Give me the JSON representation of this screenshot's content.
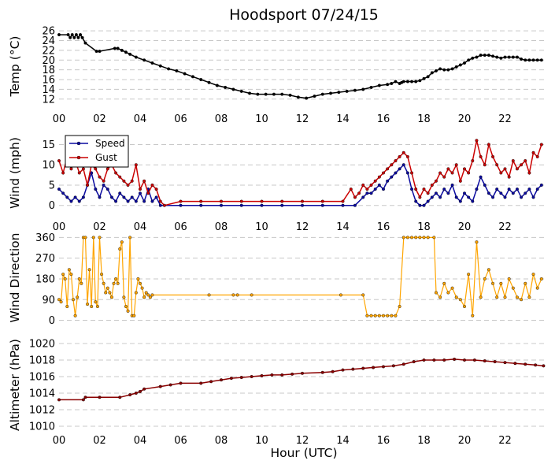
{
  "chart_data": {
    "title": "Hoodsport 07/24/15",
    "xlabel": "Hour (UTC)",
    "x_tick_labels": [
      "00",
      "02",
      "04",
      "06",
      "08",
      "10",
      "12",
      "14",
      "16",
      "18",
      "20",
      "22"
    ],
    "xlim": [
      0,
      24
    ],
    "panels": [
      {
        "type": "line",
        "ylabel": "Temp (°C)",
        "ylim": [
          11,
          26.5
        ],
        "yticks": [
          12,
          14,
          16,
          18,
          20,
          22,
          24,
          26
        ],
        "grid": true,
        "series": [
          {
            "color": "#000000",
            "x": [
              0,
              0.45,
              0.55,
              0.65,
              0.75,
              0.85,
              0.95,
              1.05,
              1.15,
              1.3,
              1.85,
              2.0,
              2.75,
              2.9,
              3.1,
              3.3,
              3.5,
              3.8,
              4.2,
              4.6,
              5.0,
              5.4,
              5.8,
              6.2,
              6.6,
              7.0,
              7.4,
              7.8,
              8.2,
              8.6,
              9.0,
              9.4,
              9.8,
              10.2,
              10.6,
              11.0,
              11.4,
              11.8,
              12.2,
              12.6,
              13.0,
              13.4,
              13.8,
              14.2,
              14.6,
              15.0,
              15.4,
              15.8,
              16.2,
              16.4,
              16.6,
              16.8,
              16.9,
              17.0,
              17.2,
              17.4,
              17.6,
              17.8,
              18.0,
              18.2,
              18.4,
              18.6,
              18.8,
              19.0,
              19.2,
              19.4,
              19.6,
              19.8,
              20.0,
              20.2,
              20.4,
              20.6,
              20.8,
              21.0,
              21.2,
              21.4,
              21.6,
              21.8,
              22.0,
              22.2,
              22.4,
              22.6,
              22.8,
              23.0,
              23.2,
              23.4,
              23.6,
              23.8
            ],
            "y": [
              25.2,
              25.2,
              24.6,
              25.2,
              24.6,
              25.2,
              24.6,
              25.2,
              24.6,
              23.5,
              21.8,
              21.8,
              22.4,
              22.4,
              22.0,
              21.6,
              21.2,
              20.6,
              20.0,
              19.4,
              18.8,
              18.2,
              17.8,
              17.2,
              16.6,
              16.0,
              15.4,
              14.8,
              14.4,
              14.0,
              13.6,
              13.2,
              13.0,
              13.0,
              13.0,
              13.0,
              12.8,
              12.4,
              12.2,
              12.6,
              13.0,
              13.2,
              13.4,
              13.6,
              13.8,
              14.0,
              14.4,
              14.8,
              15.0,
              15.2,
              15.6,
              15.2,
              15.4,
              15.6,
              15.6,
              15.6,
              15.6,
              15.8,
              16.2,
              16.6,
              17.4,
              17.8,
              18.2,
              18.0,
              18.0,
              18.2,
              18.6,
              19.0,
              19.4,
              20.0,
              20.4,
              20.6,
              21.0,
              21.0,
              21.0,
              20.8,
              20.6,
              20.4,
              20.6,
              20.6,
              20.6,
              20.6,
              20.2,
              20.0,
              20.0,
              20.0,
              20.0,
              20.0
            ]
          }
        ]
      },
      {
        "type": "line",
        "ylabel": "Wind (mph)",
        "ylim": [
          -2,
          18
        ],
        "yticks": [
          0,
          5,
          10,
          15
        ],
        "grid": true,
        "legend": {
          "position": "top-left"
        },
        "series": [
          {
            "name": "Speed",
            "color": "#0a0aa0",
            "x": [
              0,
              0.2,
              0.4,
              0.6,
              0.8,
              1.0,
              1.2,
              1.4,
              1.6,
              1.8,
              2.0,
              2.2,
              2.4,
              2.6,
              2.8,
              3.0,
              3.2,
              3.4,
              3.6,
              3.8,
              4.0,
              4.2,
              4.4,
              4.6,
              4.8,
              5.0,
              6,
              7,
              8,
              9,
              10,
              11,
              12,
              13,
              14,
              14.6,
              15.0,
              15.2,
              15.4,
              15.6,
              15.8,
              16.0,
              16.2,
              16.4,
              16.6,
              16.8,
              17.0,
              17.2,
              17.4,
              17.6,
              17.8,
              18.0,
              18.2,
              18.4,
              18.6,
              18.8,
              19.0,
              19.2,
              19.4,
              19.6,
              19.8,
              20.0,
              20.2,
              20.4,
              20.6,
              20.8,
              21.0,
              21.2,
              21.4,
              21.6,
              21.8,
              22.0,
              22.2,
              22.4,
              22.6,
              22.8,
              23.0,
              23.2,
              23.4,
              23.6,
              23.8
            ],
            "y": [
              4,
              3,
              2,
              1,
              2,
              1,
              2,
              5,
              8,
              4,
              2,
              5,
              4,
              2,
              1,
              3,
              2,
              1,
              2,
              1,
              3,
              1,
              4,
              1,
              2,
              0,
              0,
              0,
              0,
              0,
              0,
              0,
              0,
              0,
              0,
              0,
              2,
              3,
              3,
              4,
              5,
              4,
              6,
              7,
              8,
              9,
              10,
              8,
              4,
              1,
              0,
              0,
              1,
              2,
              3,
              2,
              4,
              3,
              5,
              2,
              1,
              3,
              2,
              1,
              4,
              7,
              5,
              3,
              2,
              4,
              3,
              2,
              4,
              3,
              4,
              2,
              3,
              4,
              2,
              4,
              5
            ]
          },
          {
            "name": "Gust",
            "color": "#cc0000",
            "x": [
              0,
              0.2,
              0.4,
              0.6,
              0.8,
              1.0,
              1.2,
              1.4,
              1.6,
              1.8,
              2.0,
              2.2,
              2.4,
              2.6,
              2.8,
              3.0,
              3.2,
              3.4,
              3.6,
              3.8,
              4.0,
              4.2,
              4.4,
              4.6,
              4.8,
              5.0,
              5.2,
              6,
              7,
              8,
              9,
              10,
              11,
              12,
              13,
              14,
              14.4,
              14.6,
              14.8,
              15.0,
              15.2,
              15.4,
              15.6,
              15.8,
              16.0,
              16.2,
              16.4,
              16.6,
              16.8,
              17.0,
              17.2,
              17.4,
              17.6,
              17.8,
              18.0,
              18.2,
              18.4,
              18.6,
              18.8,
              19.0,
              19.2,
              19.4,
              19.6,
              19.8,
              20.0,
              20.2,
              20.4,
              20.6,
              20.8,
              21.0,
              21.2,
              21.4,
              21.6,
              21.8,
              22.0,
              22.2,
              22.4,
              22.6,
              22.8,
              23.0,
              23.2,
              23.4,
              23.6,
              23.8
            ],
            "y": [
              11,
              8,
              12,
              9,
              11,
              8,
              9,
              5,
              10,
              9,
              7,
              6,
              9,
              10,
              8,
              7,
              6,
              5,
              6,
              10,
              4,
              6,
              3,
              5,
              4,
              1,
              0,
              1,
              1,
              1,
              1,
              1,
              1,
              1,
              1,
              1,
              4,
              2,
              3,
              5,
              4,
              5,
              6,
              7,
              8,
              9,
              10,
              11,
              12,
              13,
              12,
              8,
              4,
              2,
              4,
              3,
              5,
              6,
              8,
              7,
              9,
              8,
              10,
              6,
              9,
              8,
              11,
              16,
              12,
              10,
              15,
              12,
              10,
              8,
              9,
              7,
              11,
              9,
              10,
              11,
              8,
              13,
              12,
              15
            ]
          }
        ]
      },
      {
        "type": "scatter",
        "ylabel": "Wind Direction",
        "ylim": [
          -5,
          375
        ],
        "yticks": [
          0,
          90,
          180,
          270,
          360
        ],
        "grid": true,
        "series": [
          {
            "color": "#ffa500",
            "x": [
              0.0,
              0.1,
              0.2,
              0.3,
              0.4,
              0.5,
              0.6,
              0.7,
              0.8,
              0.9,
              1.0,
              1.1,
              1.2,
              1.3,
              1.4,
              1.5,
              1.6,
              1.7,
              1.8,
              1.9,
              2.0,
              2.1,
              2.2,
              2.3,
              2.4,
              2.5,
              2.6,
              2.7,
              2.8,
              2.9,
              3.0,
              3.1,
              3.2,
              3.3,
              3.4,
              3.5,
              3.6,
              3.7,
              3.8,
              3.9,
              4.0,
              4.1,
              4.2,
              4.3,
              4.4,
              4.5,
              4.6,
              4.7,
              4.8,
              7.4,
              8.6,
              8.8,
              9.5,
              13.9,
              15.0,
              15.2,
              15.4,
              15.6,
              15.8,
              16.0,
              16.2,
              16.4,
              16.6,
              16.8,
              17.0,
              17.2,
              17.4,
              17.6,
              17.8,
              18.0,
              18.2,
              18.5,
              18.6,
              18.8,
              19.0,
              19.2,
              19.4,
              19.6,
              19.8,
              20.0,
              20.2,
              20.4,
              20.6,
              20.8,
              21.0,
              21.2,
              21.4,
              21.6,
              21.8,
              22.0,
              22.2,
              22.4,
              22.6,
              22.8,
              23.0,
              23.2,
              23.4,
              23.6,
              23.8
            ],
            "y": [
              90,
              80,
              200,
              180,
              60,
              220,
              200,
              90,
              20,
              100,
              180,
              160,
              360,
              360,
              70,
              220,
              60,
              360,
              80,
              60,
              360,
              200,
              160,
              120,
              140,
              120,
              100,
              160,
              180,
              160,
              310,
              340,
              100,
              60,
              40,
              360,
              20,
              20,
              120,
              180,
              160,
              140,
              100,
              120,
              110,
              100,
              110,
              null,
              null,
              110,
              110,
              110,
              110,
              110,
              110,
              20,
              20,
              20,
              20,
              20,
              20,
              20,
              20,
              60,
              360,
              360,
              360,
              360,
              360,
              360,
              360,
              360,
              120,
              100,
              160,
              120,
              140,
              100,
              90,
              60,
              200,
              20,
              340,
              100,
              180,
              220,
              160,
              100,
              160,
              100,
              180,
              140,
              100,
              90,
              160,
              100,
              200,
              140,
              180
            ]
          }
        ]
      },
      {
        "type": "line",
        "ylabel": "Altimeter (hPa)",
        "ylim": [
          1010,
          1020
        ],
        "yticks": [
          1010,
          1012,
          1014,
          1016,
          1018,
          1020
        ],
        "grid": true,
        "series": [
          {
            "color": "#8b0000",
            "x": [
              0,
              1.2,
              1.3,
              2.0,
              3.0,
              3.5,
              3.8,
              4.0,
              4.2,
              5.0,
              5.5,
              6.0,
              7.0,
              7.5,
              8.0,
              8.5,
              9.0,
              9.5,
              10.0,
              10.5,
              11.0,
              11.5,
              12.0,
              13.0,
              13.5,
              14.0,
              14.5,
              15.0,
              15.5,
              16.0,
              16.5,
              17.0,
              17.5,
              18.0,
              18.5,
              19.0,
              19.5,
              20.0,
              20.5,
              21.0,
              21.5,
              22.0,
              22.5,
              23.0,
              23.5,
              23.9
            ],
            "y": [
              1013.2,
              1013.2,
              1013.5,
              1013.5,
              1013.5,
              1013.8,
              1014.0,
              1014.2,
              1014.5,
              1014.8,
              1015.0,
              1015.2,
              1015.2,
              1015.4,
              1015.6,
              1015.8,
              1015.9,
              1016.0,
              1016.1,
              1016.2,
              1016.2,
              1016.3,
              1016.4,
              1016.5,
              1016.6,
              1016.8,
              1016.9,
              1017.0,
              1017.1,
              1017.2,
              1017.3,
              1017.5,
              1017.8,
              1018.0,
              1018.0,
              1018.0,
              1018.1,
              1018.0,
              1018.0,
              1017.9,
              1017.8,
              1017.7,
              1017.6,
              1017.5,
              1017.4,
              1017.3
            ]
          }
        ]
      }
    ]
  }
}
